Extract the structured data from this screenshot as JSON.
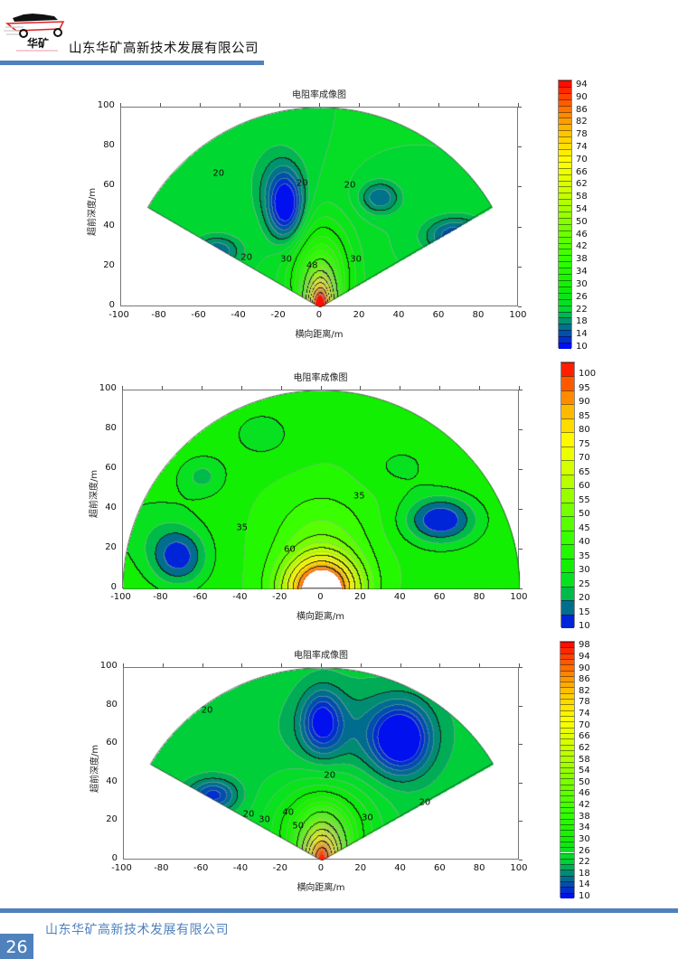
{
  "header": {
    "company": "山东华矿高新技术发展有限公司",
    "logo_text": "华矿"
  },
  "footer": {
    "company": "山东华矿高新技术发展有限公司",
    "page_number": "26"
  },
  "colors": {
    "accent": "#4f81bd"
  },
  "chart_data": [
    {
      "type": "heatmap",
      "title": "电阻率成像图",
      "xlabel": "横向距离/m",
      "ylabel": "超前深度/m",
      "xlim": [
        -100,
        100
      ],
      "ylim": [
        0,
        100
      ],
      "xticks": [
        "-100",
        "-80",
        "-60",
        "-40",
        "-20",
        "0",
        "20",
        "40",
        "60",
        "80",
        "100"
      ],
      "yticks": [
        "0",
        "20",
        "40",
        "60",
        "80",
        "100"
      ],
      "sector_half_angle_deg": 60,
      "inner_radius": 0,
      "outer_radius": 100,
      "colorbar": {
        "min": 10,
        "max": 96,
        "band_step": 2,
        "labels": [
          "10",
          "14",
          "18",
          "22",
          "26",
          "30",
          "34",
          "38",
          "42",
          "46",
          "50",
          "54",
          "58",
          "62",
          "66",
          "70",
          "74",
          "78",
          "82",
          "86",
          "90",
          "94"
        ]
      },
      "field": {
        "base": 24,
        "anomalies": [
          {
            "x": -17,
            "y": 50,
            "sx": 9,
            "sy": 17,
            "amp": -14
          },
          {
            "x": -22,
            "y": 62,
            "sx": 14,
            "sy": 20,
            "amp": -4
          },
          {
            "x": 30,
            "y": 55,
            "sx": 10,
            "sy": 8,
            "amp": -8
          },
          {
            "x": 68,
            "y": 36,
            "sx": 15,
            "sy": 9,
            "amp": -10
          },
          {
            "x": -52,
            "y": 28,
            "sx": 12,
            "sy": 8,
            "amp": -8
          },
          {
            "x": 0,
            "y": 0,
            "sx": 6,
            "sy": 14,
            "amp": 70
          },
          {
            "x": 0,
            "y": 15,
            "sx": 16,
            "sy": 28,
            "amp": 14
          }
        ]
      },
      "contour_labels": [
        {
          "text": "20",
          "x": -51,
          "y": 67
        },
        {
          "text": "20",
          "x": -9,
          "y": 62
        },
        {
          "text": "20",
          "x": 15,
          "y": 61
        },
        {
          "text": "20",
          "x": -37,
          "y": 25
        },
        {
          "text": "30",
          "x": -17,
          "y": 24
        },
        {
          "text": "48",
          "x": -4,
          "y": 21
        },
        {
          "text": "30",
          "x": 18,
          "y": 24
        }
      ]
    },
    {
      "type": "heatmap",
      "title": "电阻率成像图",
      "xlabel": "横向距离/m",
      "ylabel": "超前深度/m",
      "xlim": [
        -100,
        100
      ],
      "ylim": [
        0,
        100
      ],
      "xticks": [
        "-100",
        "-80",
        "-60",
        "-40",
        "-20",
        "0",
        "20",
        "40",
        "60",
        "80",
        "100"
      ],
      "yticks": [
        "0",
        "20",
        "40",
        "60",
        "80",
        "100"
      ],
      "sector_half_angle_deg": 90,
      "inner_radius": 10,
      "outer_radius": 100,
      "colorbar": {
        "min": 10,
        "max": 105,
        "band_step": 5,
        "labels": [
          "10",
          "15",
          "20",
          "25",
          "30",
          "35",
          "40",
          "45",
          "50",
          "55",
          "60",
          "65",
          "70",
          "75",
          "80",
          "85",
          "90",
          "95",
          "100"
        ]
      },
      "field": {
        "base": 34,
        "anomalies": [
          {
            "x": -72,
            "y": 16,
            "sx": 14,
            "sy": 14,
            "amp": -20
          },
          {
            "x": -85,
            "y": 30,
            "sx": 25,
            "sy": 20,
            "amp": -6
          },
          {
            "x": 60,
            "y": 35,
            "sx": 18,
            "sy": 12,
            "amp": -24
          },
          {
            "x": -60,
            "y": 57,
            "sx": 12,
            "sy": 10,
            "amp": -10
          },
          {
            "x": -30,
            "y": 78,
            "sx": 18,
            "sy": 14,
            "amp": -6
          },
          {
            "x": 40,
            "y": 62,
            "sx": 18,
            "sy": 12,
            "amp": -5
          },
          {
            "x": 0,
            "y": 0,
            "sx": 18,
            "sy": 16,
            "amp": 80
          },
          {
            "x": 0,
            "y": 25,
            "sx": 25,
            "sy": 25,
            "amp": 12
          }
        ]
      },
      "contour_labels": [
        {
          "text": "35",
          "x": 19,
          "y": 47
        },
        {
          "text": "35",
          "x": -40,
          "y": 31
        },
        {
          "text": "60",
          "x": -16,
          "y": 20
        }
      ]
    },
    {
      "type": "heatmap",
      "title": "电阻率成像图",
      "xlabel": "横向距离/m",
      "ylabel": "超前深度/m",
      "xlim": [
        -100,
        100
      ],
      "ylim": [
        0,
        100
      ],
      "xticks": [
        "-100",
        "-80",
        "-60",
        "-40",
        "-20",
        "0",
        "20",
        "40",
        "60",
        "80",
        "100"
      ],
      "yticks": [
        "0",
        "20",
        "40",
        "60",
        "80",
        "100"
      ],
      "sector_half_angle_deg": 60,
      "inner_radius": 0,
      "outer_radius": 100,
      "colorbar": {
        "min": 10,
        "max": 100,
        "band_step": 2,
        "labels": [
          "10",
          "14",
          "18",
          "22",
          "26",
          "30",
          "34",
          "38",
          "42",
          "46",
          "50",
          "54",
          "58",
          "62",
          "66",
          "70",
          "74",
          "78",
          "82",
          "86",
          "90",
          "94",
          "98"
        ]
      },
      "field": {
        "base": 23,
        "anomalies": [
          {
            "x": 0,
            "y": 72,
            "sx": 10,
            "sy": 16,
            "amp": -11
          },
          {
            "x": 40,
            "y": 63,
            "sx": 14,
            "sy": 17,
            "amp": -15
          },
          {
            "x": 20,
            "y": 68,
            "sx": 35,
            "sy": 22,
            "amp": -4
          },
          {
            "x": -55,
            "y": 34,
            "sx": 12,
            "sy": 8,
            "amp": -10
          },
          {
            "x": 0,
            "y": 0,
            "sx": 9,
            "sy": 16,
            "amp": 65
          },
          {
            "x": 0,
            "y": 15,
            "sx": 25,
            "sy": 25,
            "amp": 14
          }
        ]
      },
      "contour_labels": [
        {
          "text": "20",
          "x": -58,
          "y": 78
        },
        {
          "text": "20",
          "x": 4,
          "y": 44
        },
        {
          "text": "20",
          "x": 52,
          "y": 30
        },
        {
          "text": "20",
          "x": -37,
          "y": 24
        },
        {
          "text": "30",
          "x": -29,
          "y": 21
        },
        {
          "text": "40",
          "x": -17,
          "y": 25
        },
        {
          "text": "50",
          "x": -12,
          "y": 18
        },
        {
          "text": "30",
          "x": 23,
          "y": 22
        }
      ]
    }
  ]
}
